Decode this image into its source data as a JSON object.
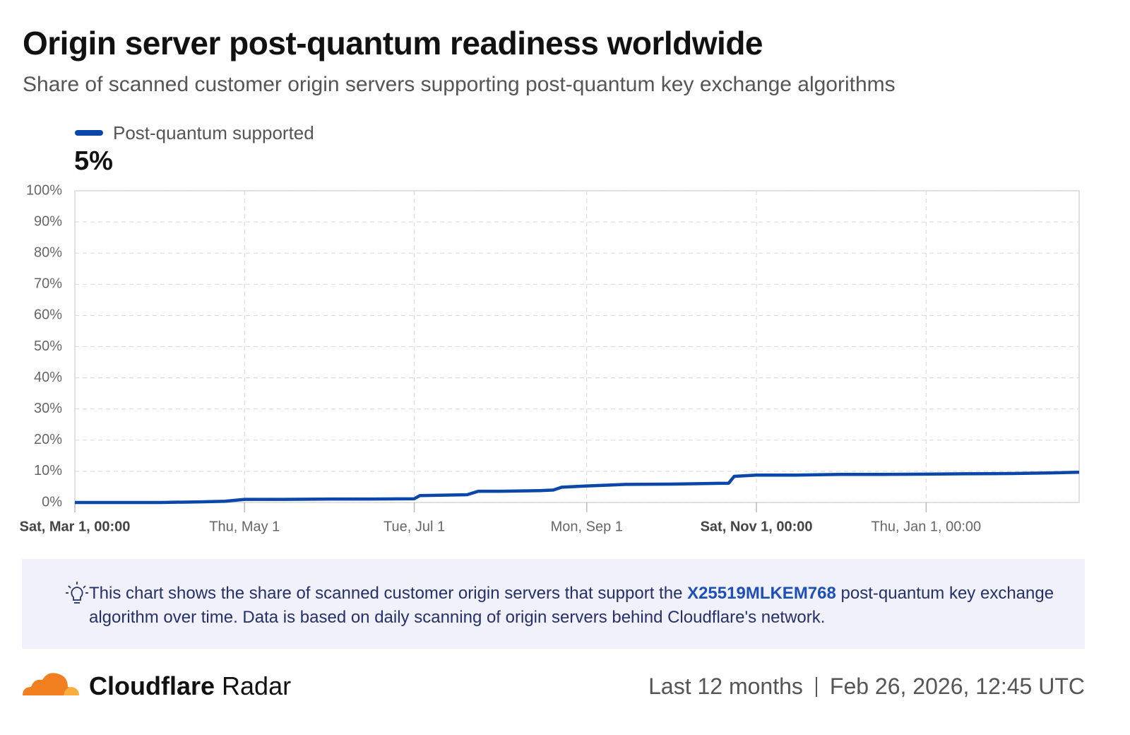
{
  "chart_data": {
    "type": "line",
    "title": "Origin server post-quantum readiness worldwide",
    "subtitle": "Share of scanned customer origin servers supporting post-quantum key exchange algorithms",
    "headline": "5%",
    "x": [
      "Mar 1",
      "Mar 15",
      "Apr 1",
      "Apr 15",
      "Apr 24",
      "May 1",
      "May 15",
      "Jun 1",
      "Jun 15",
      "Jul 1",
      "Jul 3",
      "Jul 15",
      "Jul 20",
      "Jul 24",
      "Aug 1",
      "Aug 15",
      "Aug 20",
      "Aug 23",
      "Sep 1",
      "Sep 10",
      "Sep 15",
      "Oct 1",
      "Oct 15",
      "Oct 22",
      "Oct 24",
      "Nov 1",
      "Nov 15",
      "Dec 1",
      "Dec 15",
      "Jan 1",
      "Jan 15",
      "Feb 1",
      "Feb 15",
      "Feb 25"
    ],
    "series": [
      {
        "name": "Post-quantum supported",
        "color": "#0b47a8",
        "values": [
          0,
          0,
          0,
          0.2,
          0.4,
          1.0,
          1.0,
          1.1,
          1.1,
          1.2,
          2.2,
          2.4,
          2.5,
          3.6,
          3.6,
          3.8,
          4.0,
          4.9,
          5.3,
          5.6,
          5.8,
          5.9,
          6.1,
          6.2,
          8.4,
          8.8,
          8.8,
          9.0,
          9.0,
          9.1,
          9.2,
          9.3,
          9.5,
          9.7
        ]
      }
    ],
    "xlim": [
      "Mar 1",
      "Feb 25"
    ],
    "xticks": [
      {
        "value": "Mar 1",
        "label": "Sat, Mar 1, 00:00",
        "bold": true
      },
      {
        "value": "May 1",
        "label": "Thu, May 1"
      },
      {
        "value": "Jul 1",
        "label": "Tue, Jul 1"
      },
      {
        "value": "Sep 1",
        "label": "Mon, Sep 1"
      },
      {
        "value": "Nov 1",
        "label": "Sat, Nov 1, 00:00",
        "bold": true
      },
      {
        "value": "Jan 1",
        "label": "Thu, Jan 1, 00:00"
      }
    ],
    "ylim": [
      0,
      100
    ],
    "yticks": [
      {
        "value": 0,
        "label": "0%"
      },
      {
        "value": 10,
        "label": "10%"
      },
      {
        "value": 20,
        "label": "20%"
      },
      {
        "value": 30,
        "label": "30%"
      },
      {
        "value": 40,
        "label": "40%"
      },
      {
        "value": 50,
        "label": "50%"
      },
      {
        "value": 60,
        "label": "60%"
      },
      {
        "value": 70,
        "label": "70%"
      },
      {
        "value": 80,
        "label": "80%"
      },
      {
        "value": 90,
        "label": "90%"
      },
      {
        "value": 100,
        "label": "100%"
      }
    ],
    "grid": true
  },
  "note": {
    "before": "This chart shows the share of scanned customer origin servers that support the ",
    "link": "X25519MLKEM768",
    "after": " post-quantum key exchange algorithm over time. Data is based on daily scanning of origin servers behind Cloudflare's network."
  },
  "footer": {
    "brand_bold": "Cloudflare",
    "brand": "Radar",
    "period": "Last 12 months",
    "timestamp": "Feb 26, 2026, 12:45 UTC"
  }
}
